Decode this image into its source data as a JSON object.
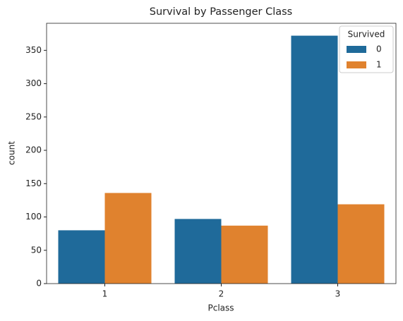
{
  "chart_data": {
    "type": "bar",
    "title": "Survival by Passenger Class",
    "x_label": "Pclass",
    "y_label": "count",
    "categories": [
      "1",
      "2",
      "3"
    ],
    "series": [
      {
        "name": "0",
        "color": "#1f6a9a",
        "values": [
          80,
          97,
          372
        ]
      },
      {
        "name": "1",
        "color": "#e0822e",
        "values": [
          136,
          87,
          119
        ]
      }
    ],
    "legend_title": "Survived",
    "legend": "upper right",
    "ylim": [
      0,
      390.6
    ],
    "yticks": [
      0,
      50,
      100,
      150,
      200,
      250,
      300,
      350
    ],
    "grid": false
  }
}
